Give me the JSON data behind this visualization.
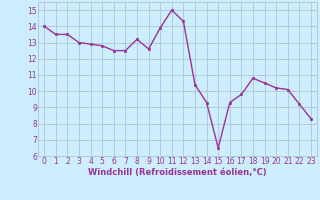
{
  "x": [
    0,
    1,
    2,
    3,
    4,
    5,
    6,
    7,
    8,
    9,
    10,
    11,
    12,
    13,
    14,
    15,
    16,
    17,
    18,
    19,
    20,
    21,
    22,
    23
  ],
  "y": [
    14.0,
    13.5,
    13.5,
    13.0,
    12.9,
    12.8,
    12.5,
    12.5,
    13.2,
    12.6,
    13.9,
    15.0,
    14.3,
    10.4,
    9.3,
    6.5,
    9.3,
    9.8,
    10.8,
    10.5,
    10.2,
    10.1,
    9.2,
    8.3
  ],
  "line_color": "#993399",
  "marker": "s",
  "marker_size": 2,
  "bg_color": "#cceeff",
  "grid_color": "#aabbcc",
  "xlabel": "Windchill (Refroidissement éolien,°C)",
  "xlabel_color": "#993399",
  "tick_color": "#993399",
  "ylim": [
    6,
    15.5
  ],
  "xlim": [
    -0.5,
    23.5
  ],
  "yticks": [
    6,
    7,
    8,
    9,
    10,
    11,
    12,
    13,
    14,
    15
  ],
  "xticks": [
    0,
    1,
    2,
    3,
    4,
    5,
    6,
    7,
    8,
    9,
    10,
    11,
    12,
    13,
    14,
    15,
    16,
    17,
    18,
    19,
    20,
    21,
    22,
    23
  ],
  "tick_fontsize": 5.5,
  "xlabel_fontsize": 6.0,
  "linewidth": 1.0
}
